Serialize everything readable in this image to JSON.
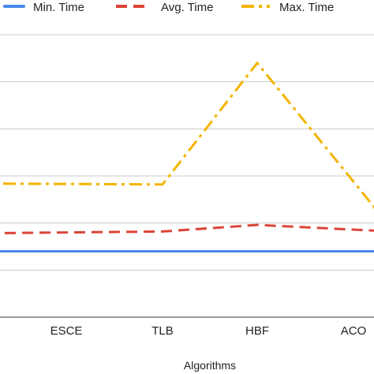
{
  "chart_data": {
    "type": "line",
    "title": "",
    "xlabel": "Algorithms",
    "ylabel": "",
    "categories": [
      "ESCE",
      "TLB",
      "HBF",
      "ACO"
    ],
    "series": [
      {
        "name": "Min. Time",
        "values": [
          0.4,
          0.4,
          0.4,
          0.4
        ],
        "color": "#4a86e8",
        "style": "solid"
      },
      {
        "name": "Avg. Time",
        "values": [
          0.8,
          0.82,
          0.96,
          0.86
        ],
        "color": "#db4437",
        "style": "dashed"
      },
      {
        "name": "Max. Time",
        "values": [
          1.83,
          1.82,
          4.4,
          1.88
        ],
        "color": "#f4b400",
        "style": "dash-dot"
      }
    ],
    "ylim": [
      -1,
      5
    ],
    "y_gridlines": [
      0,
      1,
      2,
      3,
      4,
      5
    ],
    "grid": true,
    "legend_position": "top"
  }
}
